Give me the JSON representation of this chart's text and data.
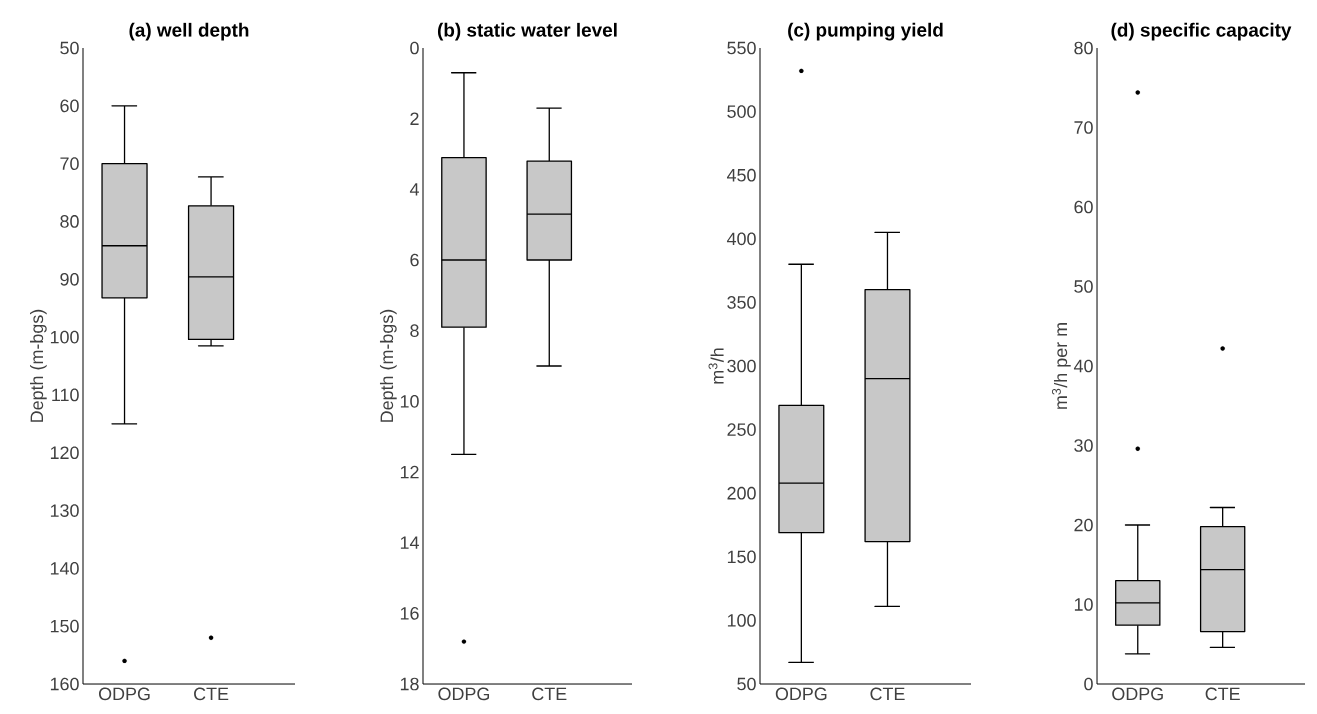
{
  "chart_data": [
    {
      "type": "box",
      "title": "(a) well depth",
      "ylabel": "Depth (m-bgs)",
      "categories": [
        "ODPG",
        "CTE"
      ],
      "color": "#c8c8c8",
      "ylim": [
        160,
        50
      ],
      "yticks": [
        50,
        60,
        70,
        80,
        90,
        100,
        110,
        120,
        130,
        140,
        150,
        160
      ],
      "boxes": [
        {
          "low": 60,
          "q1": 70,
          "median": 84.2,
          "q3": 93.2,
          "high": 115,
          "outliers": [
            156
          ]
        },
        {
          "low": 72.3,
          "q1": 77.3,
          "median": 89.6,
          "q3": 100.4,
          "high": 101.5,
          "outliers": [
            152
          ]
        }
      ]
    },
    {
      "type": "box",
      "title": "(b) static water level",
      "ylabel": "Depth (m-bgs)",
      "categories": [
        "ODPG",
        "CTE"
      ],
      "color": "#c8c8c8",
      "ylim": [
        18,
        0
      ],
      "yticks": [
        0,
        2,
        4,
        6,
        8,
        10,
        12,
        14,
        16,
        18
      ],
      "boxes": [
        {
          "low": 0.7,
          "q1": 3.1,
          "median": 6.0,
          "q3": 7.9,
          "high": 11.5,
          "outliers": [
            16.8
          ]
        },
        {
          "low": 1.7,
          "q1": 3.2,
          "median": 4.7,
          "q3": 6.0,
          "high": 9.0
        }
      ]
    },
    {
      "type": "box",
      "title": "(c) pumping yield",
      "ylabel": "m$^{3}$/h",
      "categories": [
        "ODPG",
        "CTE"
      ],
      "color": "#c8c8c8",
      "ylim": [
        50,
        550
      ],
      "yticks": [
        50,
        100,
        150,
        200,
        250,
        300,
        350,
        400,
        450,
        500,
        550
      ],
      "boxes": [
        {
          "low": 67,
          "q1": 169,
          "median": 208,
          "q3": 269,
          "high": 380,
          "outliers": [
            532
          ]
        },
        {
          "low": 111,
          "q1": 162,
          "median": 290,
          "q3": 360,
          "high": 405
        }
      ]
    },
    {
      "type": "box",
      "title": "(d) specific capacity",
      "ylabel": "m$^{3}$/h per m",
      "categories": [
        "ODPG",
        "CTE"
      ],
      "color": "#c8c8c8",
      "ylim": [
        0,
        80
      ],
      "yticks": [
        0,
        10,
        20,
        30,
        40,
        50,
        60,
        70,
        80
      ],
      "boxes": [
        {
          "low": 3.8,
          "q1": 7.4,
          "median": 10.2,
          "q3": 13,
          "high": 20,
          "outliers": [
            29.6,
            74.4
          ]
        },
        {
          "low": 4.6,
          "q1": 6.6,
          "median": 14.4,
          "q3": 19.8,
          "high": 22.2,
          "outliers": [
            42.2
          ]
        }
      ]
    }
  ]
}
